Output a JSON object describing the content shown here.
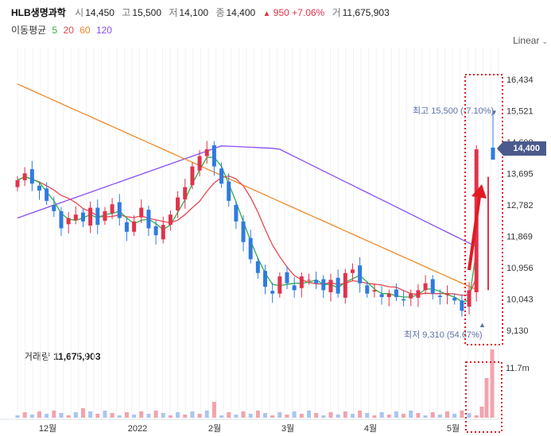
{
  "header": {
    "title": "HLB생명과학",
    "open_label": "시",
    "open": "14,450",
    "high_label": "고",
    "high": "15,500",
    "low_label": "저",
    "low": "14,100",
    "close_label": "종",
    "close": "14,400",
    "change": "950",
    "change_pct": "+7.06%",
    "volume_label": "거",
    "volume": "11,675,903"
  },
  "moving_average": {
    "title": "이동평균",
    "periods": [
      {
        "label": "5",
        "color": "#2eae46"
      },
      {
        "label": "20",
        "color": "#e8454e"
      },
      {
        "label": "60",
        "color": "#ee8a2b"
      },
      {
        "label": "120",
        "color": "#8a4df0"
      }
    ]
  },
  "scale_selector": {
    "label": "Linear"
  },
  "current_price_tag": "14,400",
  "annotations": {
    "high_note": "최고 15,500 (-7.10%)",
    "low_note": "최저 9,310 (54.67%)"
  },
  "volume_panel": {
    "title_label": "거래량",
    "title_value": "11,675,903",
    "max_label": "11.7m"
  },
  "colors": {
    "up": "#e0334b",
    "down": "#2f7be0",
    "price_tag": "#4a5a8c",
    "highlight": "#e11b22"
  },
  "chart_data": {
    "type": "candlestick",
    "y_ticks": [
      "16,434",
      "15,521",
      "14,608",
      "13,695",
      "12,782",
      "11,869",
      "10,956",
      "10,043",
      "9,130"
    ],
    "y_range": [
      9130,
      16434
    ],
    "x_ticks": [
      "12월",
      "2022",
      "2월",
      "3월",
      "4월",
      "5월"
    ],
    "last_price": 14400,
    "period_high": 15500,
    "period_low": 9310,
    "volume_max": 11675903
  }
}
